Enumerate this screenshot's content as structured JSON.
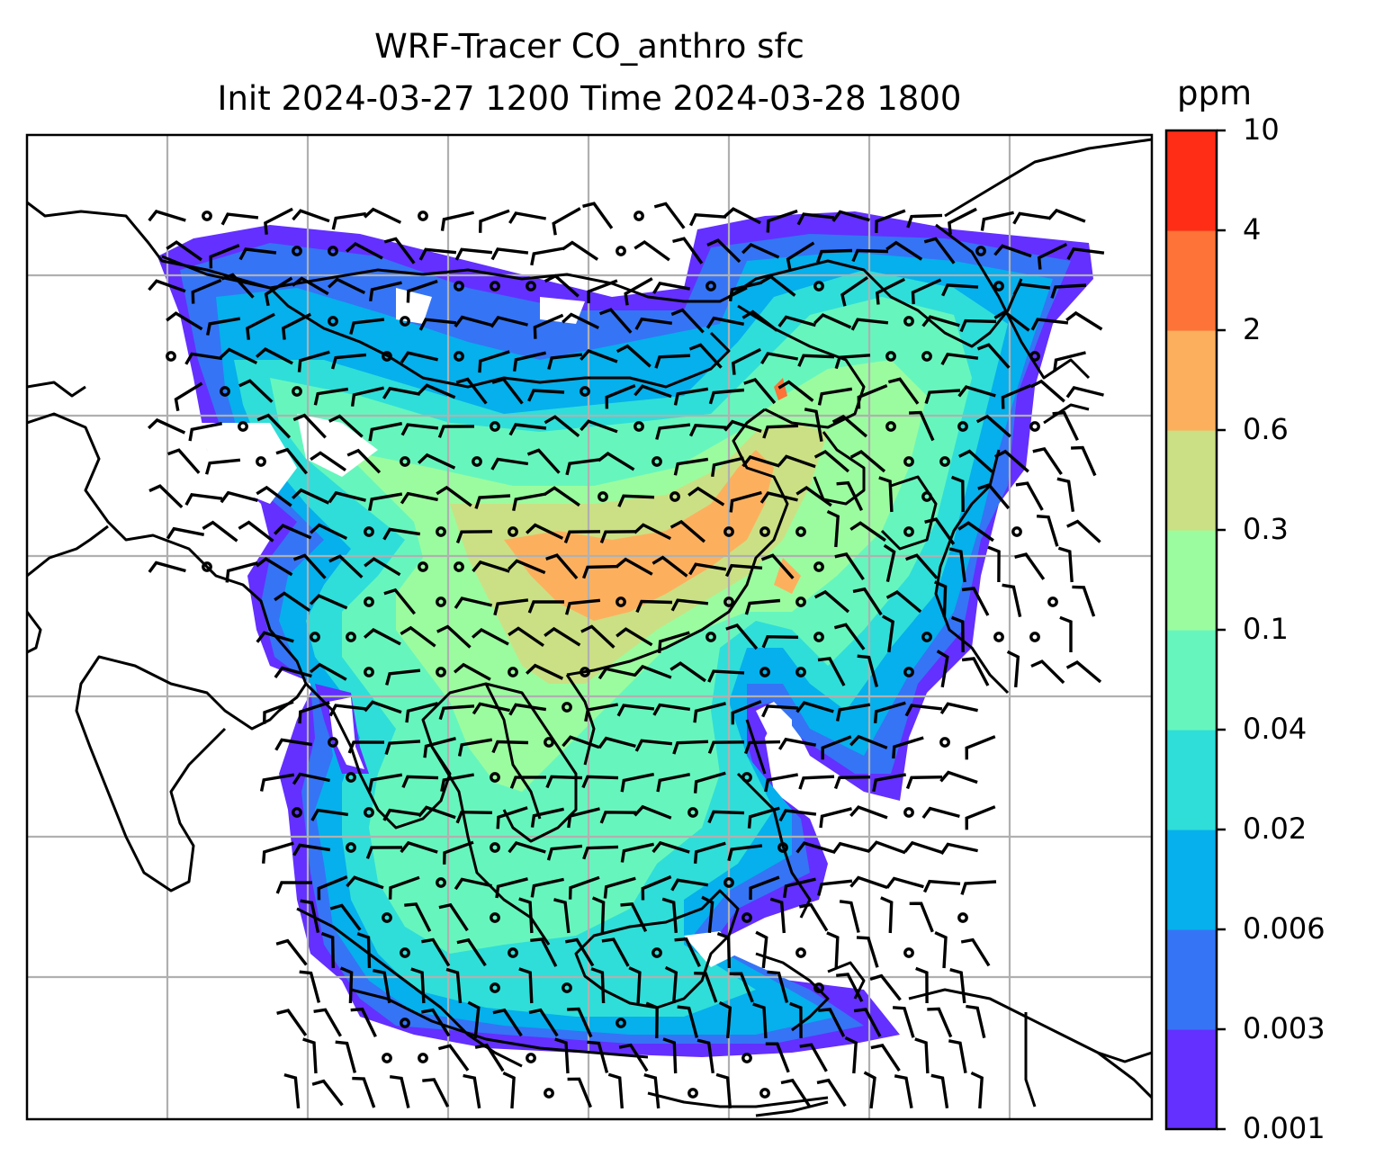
{
  "title": {
    "line1": "WRF-Tracer CO_anthro sfc",
    "line2": "Init 2024-03-27 1200 Time 2024-03-28 1800"
  },
  "colorbar": {
    "unit": "ppm",
    "ticks": [
      "0.001",
      "0.003",
      "0.006",
      "0.02",
      "0.04",
      "0.1",
      "0.3",
      "0.6",
      "2",
      "4",
      "10"
    ],
    "colors": [
      "#6330ff",
      "#3574f5",
      "#05b0ec",
      "#2fded8",
      "#66f6bd",
      "#9bfc9f",
      "#cbe084",
      "#fcb05e",
      "#fe7338",
      "#ff2d16"
    ]
  },
  "map": {
    "field": "CO_anthro",
    "level": "sfc",
    "gridlines": true,
    "overlays": [
      "coastlines",
      "country borders",
      "wind barbs"
    ]
  }
}
